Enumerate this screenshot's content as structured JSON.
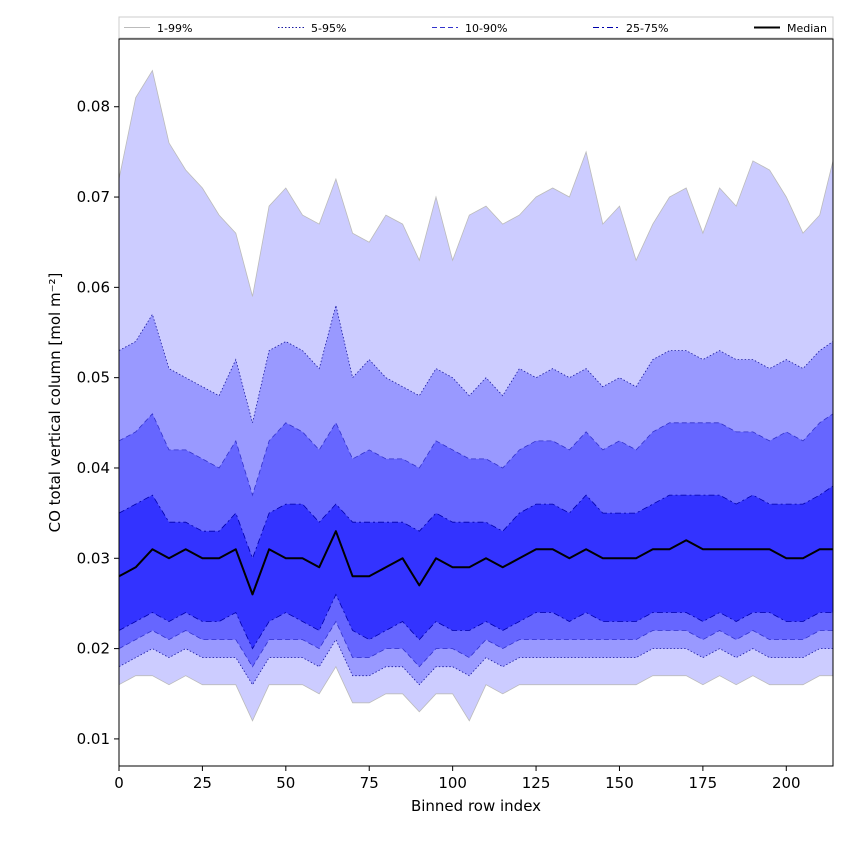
{
  "chart_data": {
    "type": "area",
    "xlabel": "Binned row index",
    "ylabel": "CO total vertical column [mol m⁻²]",
    "xlim": [
      0,
      214
    ],
    "ylim": [
      0.007,
      0.0875
    ],
    "x_ticks": [
      0,
      25,
      50,
      75,
      100,
      125,
      150,
      175,
      200
    ],
    "y_ticks": [
      0.01,
      0.02,
      0.03,
      0.04,
      0.05,
      0.06,
      0.07,
      0.08
    ],
    "y_tick_labels": [
      "0.01",
      "0.02",
      "0.03",
      "0.04",
      "0.05",
      "0.06",
      "0.07",
      "0.08"
    ],
    "legend_position": "top, spanning full width",
    "series": [
      {
        "name": "1-99%",
        "kind": "band",
        "fill": "#ccccff",
        "line": "#bbbbbb",
        "line_style": "solid"
      },
      {
        "name": "5-95%",
        "kind": "band",
        "fill": "#9999ff",
        "line": "#1a1aa0",
        "line_style": "dotted"
      },
      {
        "name": "10-90%",
        "kind": "band",
        "fill": "#6666ff",
        "line": "#3333cc",
        "line_style": "dashed"
      },
      {
        "name": "25-75%",
        "kind": "band",
        "fill": "#3333ff",
        "line": "#0000aa",
        "line_style": "dashdot"
      },
      {
        "name": "Median",
        "kind": "line",
        "line": "#000000",
        "line_style": "solid"
      }
    ],
    "x": [
      0,
      5,
      10,
      15,
      20,
      25,
      30,
      35,
      40,
      45,
      50,
      55,
      60,
      65,
      70,
      75,
      80,
      85,
      90,
      95,
      100,
      105,
      110,
      115,
      120,
      125,
      130,
      135,
      140,
      145,
      150,
      155,
      160,
      165,
      170,
      175,
      180,
      185,
      190,
      195,
      200,
      205,
      210,
      214
    ],
    "p99": [
      0.072,
      0.081,
      0.084,
      0.076,
      0.073,
      0.071,
      0.068,
      0.066,
      0.059,
      0.069,
      0.071,
      0.068,
      0.067,
      0.072,
      0.066,
      0.065,
      0.068,
      0.067,
      0.063,
      0.07,
      0.063,
      0.068,
      0.069,
      0.067,
      0.068,
      0.07,
      0.071,
      0.07,
      0.075,
      0.067,
      0.069,
      0.063,
      0.067,
      0.07,
      0.071,
      0.066,
      0.071,
      0.069,
      0.074,
      0.073,
      0.07,
      0.066,
      0.068,
      0.074
    ],
    "p95": [
      0.053,
      0.054,
      0.057,
      0.051,
      0.05,
      0.049,
      0.048,
      0.052,
      0.045,
      0.053,
      0.054,
      0.053,
      0.051,
      0.058,
      0.05,
      0.052,
      0.05,
      0.049,
      0.048,
      0.051,
      0.05,
      0.048,
      0.05,
      0.048,
      0.051,
      0.05,
      0.051,
      0.05,
      0.051,
      0.049,
      0.05,
      0.049,
      0.052,
      0.053,
      0.053,
      0.052,
      0.053,
      0.052,
      0.052,
      0.051,
      0.052,
      0.051,
      0.053,
      0.054
    ],
    "p90": [
      0.043,
      0.044,
      0.046,
      0.042,
      0.042,
      0.041,
      0.04,
      0.043,
      0.037,
      0.043,
      0.045,
      0.044,
      0.042,
      0.045,
      0.041,
      0.042,
      0.041,
      0.041,
      0.04,
      0.043,
      0.042,
      0.041,
      0.041,
      0.04,
      0.042,
      0.043,
      0.043,
      0.042,
      0.044,
      0.042,
      0.043,
      0.042,
      0.044,
      0.045,
      0.045,
      0.045,
      0.045,
      0.044,
      0.044,
      0.043,
      0.044,
      0.043,
      0.045,
      0.046
    ],
    "p75": [
      0.035,
      0.036,
      0.037,
      0.034,
      0.034,
      0.033,
      0.033,
      0.035,
      0.03,
      0.035,
      0.036,
      0.036,
      0.034,
      0.036,
      0.034,
      0.034,
      0.034,
      0.034,
      0.033,
      0.035,
      0.034,
      0.034,
      0.034,
      0.033,
      0.035,
      0.036,
      0.036,
      0.035,
      0.037,
      0.035,
      0.035,
      0.035,
      0.036,
      0.037,
      0.037,
      0.037,
      0.037,
      0.036,
      0.037,
      0.036,
      0.036,
      0.036,
      0.037,
      0.038
    ],
    "median": [
      0.028,
      0.029,
      0.031,
      0.03,
      0.031,
      0.03,
      0.03,
      0.031,
      0.026,
      0.031,
      0.03,
      0.03,
      0.029,
      0.033,
      0.028,
      0.028,
      0.029,
      0.03,
      0.027,
      0.03,
      0.029,
      0.029,
      0.03,
      0.029,
      0.03,
      0.031,
      0.031,
      0.03,
      0.031,
      0.03,
      0.03,
      0.03,
      0.031,
      0.031,
      0.032,
      0.031,
      0.031,
      0.031,
      0.031,
      0.031,
      0.03,
      0.03,
      0.031,
      0.031
    ],
    "p25": [
      0.022,
      0.023,
      0.024,
      0.023,
      0.024,
      0.023,
      0.023,
      0.024,
      0.02,
      0.023,
      0.024,
      0.023,
      0.022,
      0.026,
      0.022,
      0.021,
      0.022,
      0.023,
      0.021,
      0.023,
      0.022,
      0.022,
      0.023,
      0.022,
      0.023,
      0.024,
      0.024,
      0.023,
      0.024,
      0.023,
      0.023,
      0.023,
      0.024,
      0.024,
      0.024,
      0.023,
      0.024,
      0.023,
      0.024,
      0.024,
      0.023,
      0.023,
      0.024,
      0.024
    ],
    "p10": [
      0.02,
      0.021,
      0.022,
      0.021,
      0.022,
      0.021,
      0.021,
      0.021,
      0.018,
      0.021,
      0.021,
      0.021,
      0.02,
      0.023,
      0.019,
      0.019,
      0.02,
      0.02,
      0.018,
      0.02,
      0.02,
      0.019,
      0.021,
      0.02,
      0.021,
      0.021,
      0.021,
      0.021,
      0.021,
      0.021,
      0.021,
      0.021,
      0.022,
      0.022,
      0.022,
      0.021,
      0.022,
      0.021,
      0.022,
      0.021,
      0.021,
      0.021,
      0.022,
      0.022
    ],
    "p5": [
      0.018,
      0.019,
      0.02,
      0.019,
      0.02,
      0.019,
      0.019,
      0.019,
      0.016,
      0.019,
      0.019,
      0.019,
      0.018,
      0.021,
      0.017,
      0.017,
      0.018,
      0.018,
      0.016,
      0.018,
      0.018,
      0.017,
      0.019,
      0.018,
      0.019,
      0.019,
      0.019,
      0.019,
      0.019,
      0.019,
      0.019,
      0.019,
      0.02,
      0.02,
      0.02,
      0.019,
      0.02,
      0.019,
      0.02,
      0.019,
      0.019,
      0.019,
      0.02,
      0.02
    ],
    "p1": [
      0.016,
      0.017,
      0.017,
      0.016,
      0.017,
      0.016,
      0.016,
      0.016,
      0.012,
      0.016,
      0.016,
      0.016,
      0.015,
      0.018,
      0.014,
      0.014,
      0.015,
      0.015,
      0.013,
      0.015,
      0.015,
      0.012,
      0.016,
      0.015,
      0.016,
      0.016,
      0.016,
      0.016,
      0.016,
      0.016,
      0.016,
      0.016,
      0.017,
      0.017,
      0.017,
      0.016,
      0.017,
      0.016,
      0.017,
      0.016,
      0.016,
      0.016,
      0.017,
      0.017
    ]
  }
}
